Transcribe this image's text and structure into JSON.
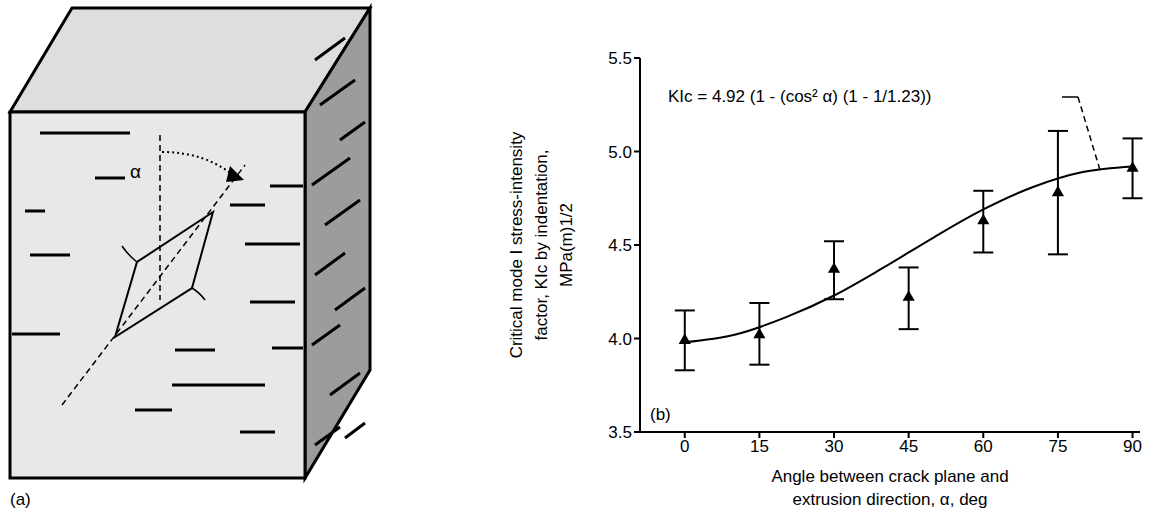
{
  "diagram": {
    "panel_label": "(a)",
    "angle_label": "α"
  },
  "chart_data": {
    "type": "scatter",
    "panel_label": "(b)",
    "annotation": "KIc = 4.92 (1 - (cos² α) (1 - 1/1.23))",
    "x_label": [
      "Angle between crack plane and",
      "extrusion direction, α, deg"
    ],
    "y_label": [
      "Critical mode I stress-intensity",
      "factor, KIc by indentation,",
      "MPa(m)1/2"
    ],
    "xlim": [
      -9,
      91.5
    ],
    "xticks": [
      0,
      15,
      30,
      45,
      60,
      75,
      90
    ],
    "ylim": [
      3.5,
      5.5
    ],
    "yticks": [
      {
        "value": 3.5,
        "label": "3.5"
      },
      {
        "value": 4,
        "label": "4.0"
      },
      {
        "value": 4.5,
        "label": "4.5"
      },
      {
        "value": 5,
        "label": "5.0"
      },
      {
        "value": 5.5,
        "label": "5.5"
      }
    ],
    "grid": false,
    "series": [
      {
        "type": "scatter",
        "marker": "triangle",
        "color": "#000000",
        "x": [
          0,
          15,
          30,
          45,
          60,
          75,
          90
        ],
        "values": [
          3.99,
          4.02,
          4.37,
          4.22,
          4.63,
          4.78,
          4.91
        ],
        "errors": [
          [
            0.16,
            0.16
          ],
          [
            0.16,
            0.17
          ],
          [
            0.16,
            0.15
          ],
          [
            0.17,
            0.16
          ],
          [
            0.17,
            0.16
          ],
          [
            0.33,
            0.33
          ],
          [
            0.16,
            0.16
          ]
        ]
      },
      {
        "type": "line",
        "color": "#000000",
        "line_style": "solid",
        "x": [
          0,
          10,
          20,
          30,
          40,
          50,
          60,
          70,
          80,
          90
        ],
        "values": [
          3.98,
          4.02,
          4.11,
          4.23,
          4.38,
          4.54,
          4.69,
          4.81,
          4.89,
          4.92
        ]
      }
    ]
  }
}
